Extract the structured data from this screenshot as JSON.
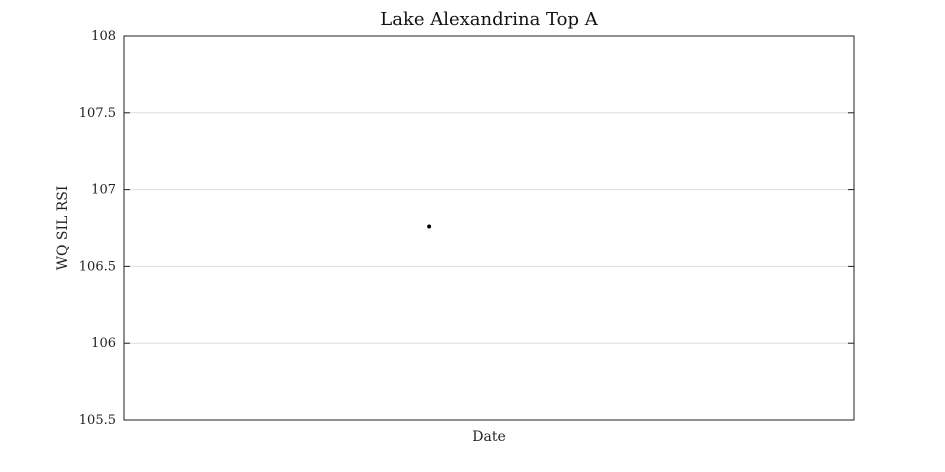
{
  "chart_data": {
    "type": "scatter",
    "title": "Lake Alexandrina Top A",
    "xlabel": "Date",
    "ylabel": "WQ SIL RSI",
    "ylim": [
      105.5,
      108
    ],
    "yticks": [
      105.5,
      106,
      106.5,
      107,
      107.5,
      108
    ],
    "ytick_labels": [
      "105.5",
      "106",
      "106.5",
      "107",
      "107.5",
      "108"
    ],
    "xlim": [
      0,
      1
    ],
    "grid": true,
    "series": [
      {
        "x": [
          0.418
        ],
        "y": [
          106.76
        ],
        "color": "#000000"
      }
    ]
  }
}
